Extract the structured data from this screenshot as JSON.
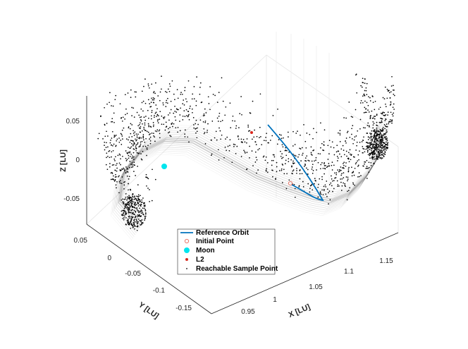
{
  "chart_data": {
    "type": "scatter",
    "title": "",
    "dimensions": "3d",
    "xlabel": "X [LU]",
    "ylabel": "Y [LU]",
    "zlabel": "Z [LU]",
    "x_ticks": [
      "0.95",
      "1",
      "1.05",
      "1.1",
      "1.15"
    ],
    "y_ticks": [
      "0.05",
      "0",
      "-0.05",
      "-0.1",
      "-0.15"
    ],
    "z_ticks": [
      "0.05",
      "0",
      "-0.05"
    ],
    "xlim": [
      0.93,
      1.2
    ],
    "ylim": [
      -0.19,
      0.07
    ],
    "zlim": [
      -0.09,
      0.09
    ],
    "grid": true,
    "legend_position": "bottom-center",
    "series": [
      {
        "name": "Reference Orbit",
        "marker": "line",
        "color": "#0072BD",
        "points": [
          [
            1.02,
            0.0,
            0.07
          ],
          [
            1.05,
            -0.02,
            0.02
          ],
          [
            1.09,
            -0.04,
            -0.03
          ],
          [
            1.12,
            -0.05,
            -0.06
          ],
          [
            1.1,
            -0.06,
            -0.065
          ],
          [
            1.05,
            -0.05,
            -0.055
          ]
        ]
      },
      {
        "name": "Initial Point",
        "marker": "open-circle",
        "color": "#e8786b",
        "points": [
          [
            1.05,
            -0.05,
            -0.055
          ]
        ]
      },
      {
        "name": "Moon",
        "marker": "filled-circle",
        "color": "#00e5ee",
        "points": [
          [
            0.99,
            0.0,
            0.0
          ]
        ]
      },
      {
        "name": "L2",
        "marker": "dot",
        "color": "#d9261c",
        "points": [
          [
            1.16,
            0.0,
            0.0
          ]
        ]
      },
      {
        "name": "Reachable Sample Point",
        "marker": "small-dot",
        "color": "#000000",
        "points": []
      }
    ],
    "colors": {
      "axis": "#262626",
      "grid": "#e6e6e6",
      "envelope": "#9a9a9a"
    }
  }
}
